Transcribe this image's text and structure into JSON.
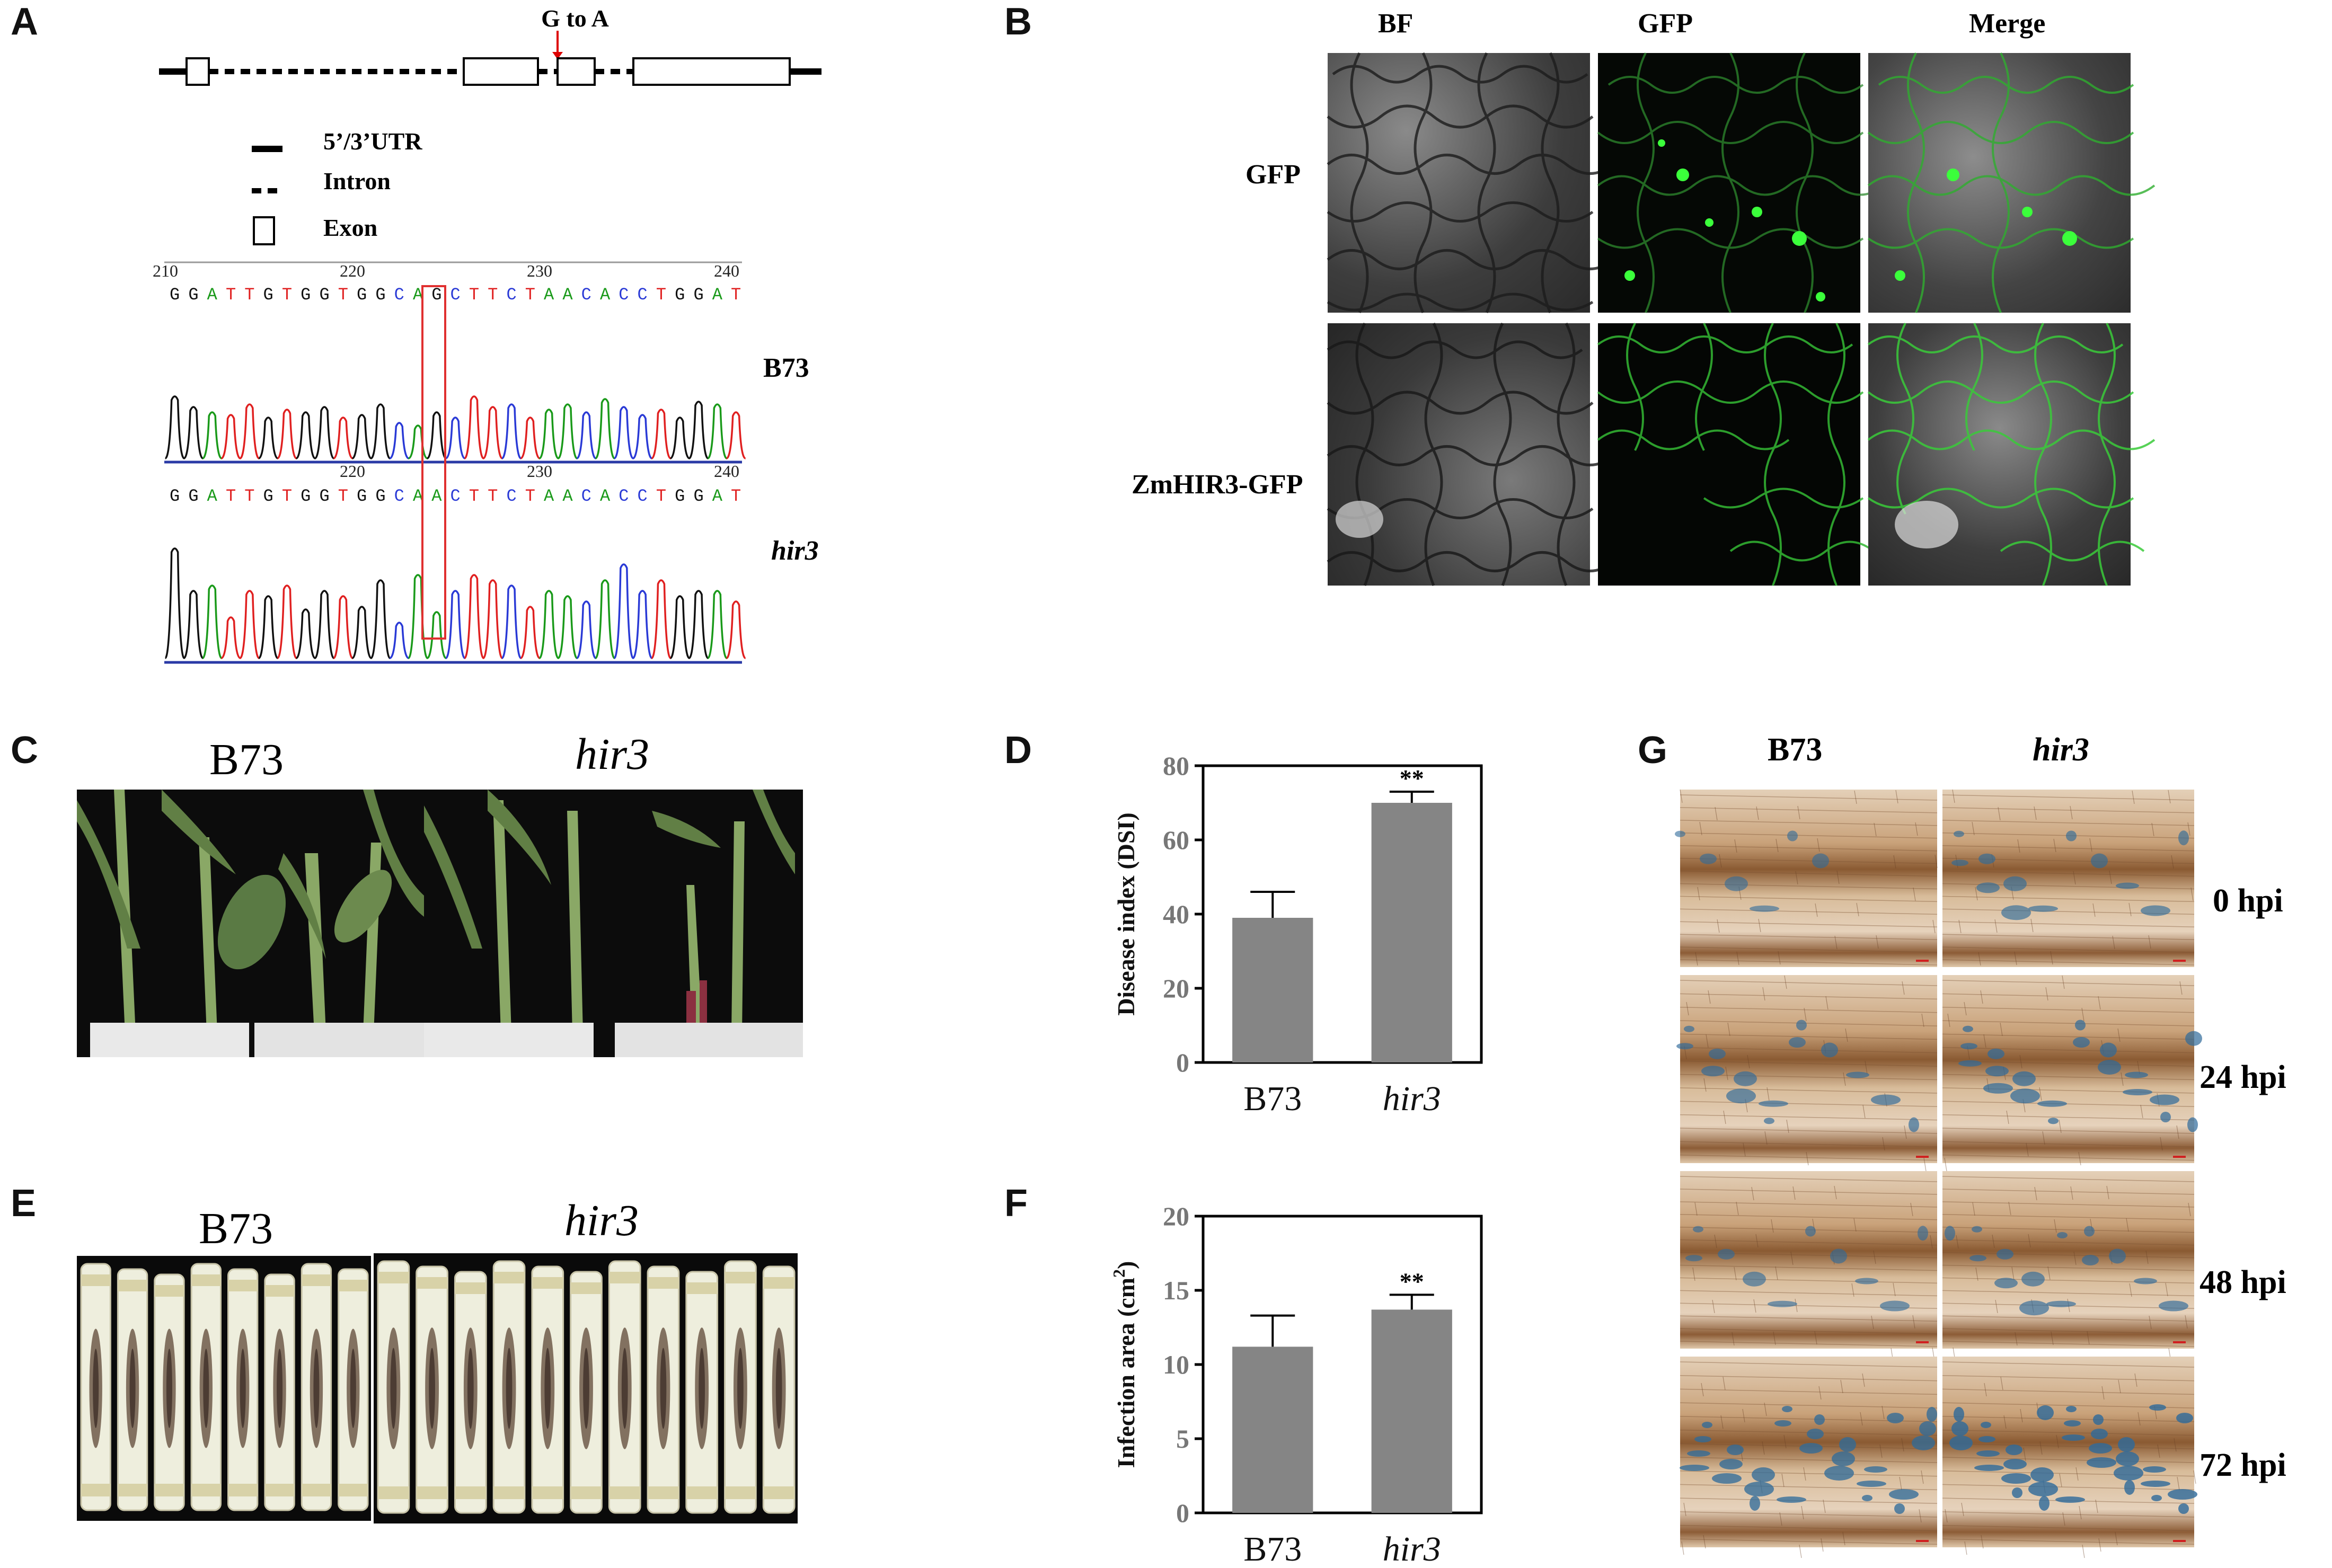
{
  "panels": {
    "A": {
      "letter": "A",
      "mutation_label": "G to A",
      "legend": {
        "utr": "5’/3’UTR",
        "intron": "Intron",
        "exon": "Exon"
      },
      "seq_top": {
        "ticks": [
          "210",
          "220",
          "230",
          "240"
        ],
        "bases": "GGATTGTGGTGGCAGCTTCTAACACCTGGAT",
        "label": "B73"
      },
      "seq_bottom": {
        "ticks": [
          "220",
          "230",
          "240"
        ],
        "bases": "GGATTGTGGTGGCAACTTCTAACACCTGGAT",
        "label": "hir3"
      }
    },
    "B": {
      "letter": "B",
      "columns": [
        "BF",
        "GFP",
        "Merge"
      ],
      "rows": [
        "GFP",
        "ZmHIR3-GFP"
      ]
    },
    "C": {
      "letter": "C",
      "labels": [
        "B73",
        "hir3"
      ]
    },
    "D": {
      "letter": "D"
    },
    "E": {
      "letter": "E",
      "labels": [
        "B73",
        "hir3"
      ]
    },
    "F": {
      "letter": "F"
    },
    "G": {
      "letter": "G",
      "columns": [
        "B73",
        "hir3"
      ],
      "rows": [
        "0 hpi",
        "24 hpi",
        "48 hpi",
        "72 hpi"
      ]
    }
  },
  "chart_data": [
    {
      "type": "bar",
      "panel": "D",
      "categories": [
        "B73",
        "hir3"
      ],
      "values": [
        39,
        70
      ],
      "errors": [
        7,
        3
      ],
      "significance": [
        "",
        "**"
      ],
      "ylabel": "Disease index (DSI)",
      "ylim": [
        0,
        80
      ],
      "yticks": [
        "0",
        "20",
        "40",
        "60",
        "80"
      ],
      "bar_color": "#858585"
    },
    {
      "type": "bar",
      "panel": "F",
      "categories": [
        "B73",
        "hir3"
      ],
      "values": [
        11.2,
        13.7
      ],
      "errors": [
        2.1,
        1.0
      ],
      "significance": [
        "",
        "**"
      ],
      "ylabel": "Infection area (cm²)",
      "ylim": [
        0,
        20
      ],
      "yticks": [
        "0",
        "5",
        "10",
        "15",
        "20"
      ],
      "bar_color": "#858585"
    }
  ]
}
